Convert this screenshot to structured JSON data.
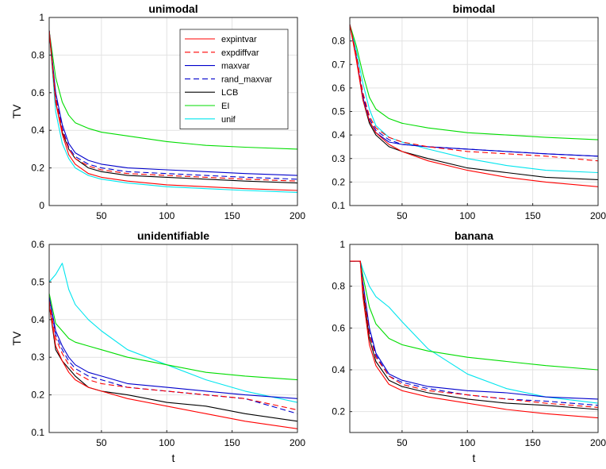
{
  "legend": {
    "placement": "top-right of first panel",
    "entries": [
      {
        "name": "expintvar",
        "color": "#ff0000",
        "dash": "solid"
      },
      {
        "name": "expdiffvar",
        "color": "#ff0000",
        "dash": "dashed"
      },
      {
        "name": "maxvar",
        "color": "#0000cc",
        "dash": "solid"
      },
      {
        "name": "rand_maxvar",
        "color": "#0000cc",
        "dash": "dashed"
      },
      {
        "name": "LCB",
        "color": "#000000",
        "dash": "solid"
      },
      {
        "name": "EI",
        "color": "#00dd00",
        "dash": "solid"
      },
      {
        "name": "unif",
        "color": "#00e5ee",
        "dash": "solid"
      }
    ]
  },
  "chart_data": [
    {
      "type": "line",
      "title": "unimodal",
      "xlabel": "",
      "ylabel": "TV",
      "xlim": [
        10,
        200
      ],
      "ylim": [
        0,
        1
      ],
      "xticks": [
        50,
        100,
        150,
        200
      ],
      "yticks": [
        0,
        0.2,
        0.4,
        0.6,
        0.8,
        1
      ],
      "ytick_labels": [
        "0",
        "0.2",
        "0.4",
        "0.6",
        "0.8",
        "1"
      ],
      "grid": true,
      "series": [
        {
          "name": "expintvar",
          "x": [
            10,
            15,
            20,
            25,
            30,
            40,
            50,
            70,
            100,
            130,
            160,
            200
          ],
          "y": [
            0.93,
            0.55,
            0.38,
            0.27,
            0.22,
            0.17,
            0.15,
            0.13,
            0.11,
            0.1,
            0.09,
            0.08
          ]
        },
        {
          "name": "expdiffvar",
          "x": [
            10,
            15,
            20,
            25,
            30,
            40,
            50,
            70,
            100,
            130,
            160,
            200
          ],
          "y": [
            0.93,
            0.57,
            0.4,
            0.3,
            0.25,
            0.21,
            0.19,
            0.17,
            0.16,
            0.15,
            0.14,
            0.13
          ]
        },
        {
          "name": "maxvar",
          "x": [
            10,
            15,
            20,
            25,
            30,
            40,
            50,
            70,
            100,
            130,
            160,
            200
          ],
          "y": [
            0.93,
            0.6,
            0.43,
            0.33,
            0.28,
            0.24,
            0.22,
            0.2,
            0.19,
            0.18,
            0.17,
            0.16
          ]
        },
        {
          "name": "rand_maxvar",
          "x": [
            10,
            15,
            20,
            25,
            30,
            40,
            50,
            70,
            100,
            130,
            160,
            200
          ],
          "y": [
            0.93,
            0.58,
            0.41,
            0.31,
            0.26,
            0.22,
            0.2,
            0.18,
            0.17,
            0.16,
            0.15,
            0.14
          ]
        },
        {
          "name": "LCB",
          "x": [
            10,
            15,
            20,
            25,
            30,
            40,
            50,
            70,
            100,
            130,
            160,
            200
          ],
          "y": [
            0.93,
            0.55,
            0.39,
            0.3,
            0.25,
            0.2,
            0.18,
            0.16,
            0.15,
            0.14,
            0.13,
            0.12
          ]
        },
        {
          "name": "EI",
          "x": [
            10,
            15,
            20,
            25,
            30,
            40,
            50,
            70,
            100,
            130,
            160,
            200
          ],
          "y": [
            0.93,
            0.68,
            0.55,
            0.48,
            0.44,
            0.41,
            0.39,
            0.37,
            0.34,
            0.32,
            0.31,
            0.3
          ]
        },
        {
          "name": "unif",
          "x": [
            10,
            15,
            20,
            25,
            30,
            40,
            50,
            70,
            100,
            130,
            160,
            200
          ],
          "y": [
            0.93,
            0.5,
            0.33,
            0.25,
            0.2,
            0.16,
            0.14,
            0.12,
            0.1,
            0.09,
            0.08,
            0.07
          ]
        }
      ]
    },
    {
      "type": "line",
      "title": "bimodal",
      "xlabel": "",
      "ylabel": "",
      "xlim": [
        10,
        200
      ],
      "ylim": [
        0.1,
        0.9
      ],
      "xticks": [
        50,
        100,
        150,
        200
      ],
      "yticks": [
        0.1,
        0.2,
        0.3,
        0.4,
        0.5,
        0.6,
        0.7,
        0.8
      ],
      "ytick_labels": [
        "0.1",
        "0.2",
        "0.3",
        "0.4",
        "0.5",
        "0.6",
        "0.7",
        "0.8"
      ],
      "grid": true,
      "series": [
        {
          "name": "expintvar",
          "x": [
            10,
            15,
            20,
            25,
            30,
            40,
            50,
            70,
            100,
            130,
            160,
            200
          ],
          "y": [
            0.87,
            0.72,
            0.55,
            0.46,
            0.41,
            0.36,
            0.33,
            0.29,
            0.25,
            0.22,
            0.2,
            0.18
          ]
        },
        {
          "name": "expdiffvar",
          "x": [
            10,
            15,
            20,
            25,
            30,
            40,
            50,
            70,
            100,
            130,
            160,
            200
          ],
          "y": [
            0.87,
            0.74,
            0.58,
            0.48,
            0.43,
            0.39,
            0.37,
            0.35,
            0.33,
            0.32,
            0.31,
            0.29
          ]
        },
        {
          "name": "maxvar",
          "x": [
            10,
            15,
            20,
            25,
            30,
            40,
            50,
            70,
            100,
            130,
            160,
            200
          ],
          "y": [
            0.87,
            0.73,
            0.56,
            0.46,
            0.41,
            0.37,
            0.36,
            0.35,
            0.34,
            0.33,
            0.32,
            0.31
          ]
        },
        {
          "name": "rand_maxvar",
          "x": [
            10,
            15,
            20,
            25,
            30,
            40,
            50,
            70,
            100,
            130,
            160,
            200
          ],
          "y": [
            0.87,
            0.74,
            0.57,
            0.47,
            0.42,
            0.38,
            0.36,
            0.35,
            0.34,
            0.33,
            0.32,
            0.31
          ]
        },
        {
          "name": "LCB",
          "x": [
            10,
            15,
            20,
            25,
            30,
            40,
            50,
            70,
            100,
            130,
            160,
            200
          ],
          "y": [
            0.87,
            0.73,
            0.55,
            0.45,
            0.4,
            0.35,
            0.33,
            0.3,
            0.26,
            0.24,
            0.22,
            0.21
          ]
        },
        {
          "name": "EI",
          "x": [
            10,
            15,
            20,
            25,
            30,
            40,
            50,
            70,
            100,
            130,
            160,
            200
          ],
          "y": [
            0.87,
            0.78,
            0.66,
            0.56,
            0.51,
            0.47,
            0.45,
            0.43,
            0.41,
            0.4,
            0.39,
            0.38
          ]
        },
        {
          "name": "unif",
          "x": [
            10,
            15,
            20,
            25,
            30,
            40,
            50,
            70,
            100,
            130,
            160,
            200
          ],
          "y": [
            0.87,
            0.76,
            0.62,
            0.51,
            0.44,
            0.39,
            0.37,
            0.34,
            0.3,
            0.27,
            0.25,
            0.24
          ]
        }
      ]
    },
    {
      "type": "line",
      "title": "unidentifiable",
      "xlabel": "t",
      "ylabel": "TV",
      "xlim": [
        10,
        200
      ],
      "ylim": [
        0.1,
        0.6
      ],
      "xticks": [
        50,
        100,
        150,
        200
      ],
      "yticks": [
        0.1,
        0.2,
        0.3,
        0.4,
        0.5,
        0.6
      ],
      "ytick_labels": [
        "0.1",
        "0.2",
        "0.3",
        "0.4",
        "0.5",
        "0.6"
      ],
      "grid": true,
      "series": [
        {
          "name": "expintvar",
          "x": [
            10,
            15,
            20,
            25,
            30,
            40,
            50,
            70,
            100,
            130,
            160,
            200
          ],
          "y": [
            0.44,
            0.33,
            0.29,
            0.26,
            0.24,
            0.22,
            0.21,
            0.19,
            0.17,
            0.15,
            0.13,
            0.11
          ]
        },
        {
          "name": "expdiffvar",
          "x": [
            10,
            15,
            20,
            25,
            30,
            40,
            50,
            70,
            100,
            130,
            160,
            200
          ],
          "y": [
            0.45,
            0.35,
            0.31,
            0.28,
            0.26,
            0.24,
            0.23,
            0.22,
            0.21,
            0.2,
            0.19,
            0.16
          ]
        },
        {
          "name": "maxvar",
          "x": [
            10,
            15,
            20,
            25,
            30,
            40,
            50,
            70,
            100,
            130,
            160,
            200
          ],
          "y": [
            0.46,
            0.37,
            0.33,
            0.3,
            0.28,
            0.26,
            0.25,
            0.23,
            0.22,
            0.21,
            0.2,
            0.19
          ]
        },
        {
          "name": "rand_maxvar",
          "x": [
            10,
            15,
            20,
            25,
            30,
            40,
            50,
            70,
            100,
            130,
            160,
            200
          ],
          "y": [
            0.46,
            0.36,
            0.32,
            0.29,
            0.27,
            0.25,
            0.24,
            0.22,
            0.21,
            0.2,
            0.19,
            0.15
          ]
        },
        {
          "name": "LCB",
          "x": [
            10,
            15,
            20,
            25,
            30,
            40,
            50,
            70,
            100,
            130,
            160,
            200
          ],
          "y": [
            0.44,
            0.32,
            0.29,
            0.27,
            0.25,
            0.22,
            0.21,
            0.2,
            0.18,
            0.17,
            0.15,
            0.13
          ]
        },
        {
          "name": "EI",
          "x": [
            10,
            15,
            20,
            25,
            30,
            40,
            50,
            70,
            100,
            130,
            160,
            200
          ],
          "y": [
            0.47,
            0.39,
            0.37,
            0.35,
            0.34,
            0.33,
            0.32,
            0.3,
            0.28,
            0.26,
            0.25,
            0.24
          ]
        },
        {
          "name": "unif",
          "x": [
            10,
            15,
            20,
            25,
            30,
            40,
            50,
            70,
            100,
            130,
            160,
            200
          ],
          "y": [
            0.5,
            0.52,
            0.55,
            0.48,
            0.44,
            0.4,
            0.37,
            0.32,
            0.28,
            0.24,
            0.21,
            0.18
          ]
        }
      ]
    },
    {
      "type": "line",
      "title": "banana",
      "xlabel": "t",
      "ylabel": "",
      "xlim": [
        10,
        200
      ],
      "ylim": [
        0.1,
        1
      ],
      "xticks": [
        50,
        100,
        150,
        200
      ],
      "yticks": [
        0.2,
        0.4,
        0.6,
        0.8,
        1
      ],
      "ytick_labels": [
        "0.2",
        "0.4",
        "0.6",
        "0.8",
        "1"
      ],
      "grid": true,
      "series": [
        {
          "name": "expintvar",
          "x": [
            10,
            18,
            20,
            25,
            30,
            40,
            50,
            70,
            100,
            130,
            160,
            200
          ],
          "y": [
            0.92,
            0.92,
            0.75,
            0.52,
            0.42,
            0.33,
            0.3,
            0.27,
            0.24,
            0.21,
            0.19,
            0.17
          ]
        },
        {
          "name": "expdiffvar",
          "x": [
            10,
            18,
            20,
            25,
            30,
            40,
            50,
            70,
            100,
            130,
            160,
            200
          ],
          "y": [
            0.92,
            0.92,
            0.8,
            0.57,
            0.46,
            0.37,
            0.33,
            0.3,
            0.28,
            0.26,
            0.24,
            0.22
          ]
        },
        {
          "name": "maxvar",
          "x": [
            10,
            18,
            20,
            25,
            30,
            40,
            50,
            70,
            100,
            130,
            160,
            200
          ],
          "y": [
            0.92,
            0.92,
            0.82,
            0.6,
            0.48,
            0.38,
            0.35,
            0.32,
            0.3,
            0.29,
            0.27,
            0.26
          ]
        },
        {
          "name": "rand_maxvar",
          "x": [
            10,
            18,
            20,
            25,
            30,
            40,
            50,
            70,
            100,
            130,
            160,
            200
          ],
          "y": [
            0.92,
            0.92,
            0.81,
            0.58,
            0.47,
            0.37,
            0.34,
            0.31,
            0.28,
            0.26,
            0.25,
            0.23
          ]
        },
        {
          "name": "LCB",
          "x": [
            10,
            18,
            20,
            25,
            30,
            40,
            50,
            70,
            100,
            130,
            160,
            200
          ],
          "y": [
            0.92,
            0.92,
            0.78,
            0.55,
            0.44,
            0.35,
            0.32,
            0.29,
            0.26,
            0.24,
            0.23,
            0.21
          ]
        },
        {
          "name": "EI",
          "x": [
            10,
            18,
            20,
            25,
            30,
            40,
            50,
            70,
            100,
            130,
            160,
            200
          ],
          "y": [
            0.92,
            0.92,
            0.85,
            0.7,
            0.62,
            0.55,
            0.52,
            0.49,
            0.46,
            0.44,
            0.42,
            0.4
          ]
        },
        {
          "name": "unif",
          "x": [
            10,
            18,
            20,
            25,
            30,
            40,
            50,
            70,
            100,
            130,
            160,
            200
          ],
          "y": [
            0.92,
            0.92,
            0.88,
            0.8,
            0.75,
            0.7,
            0.63,
            0.5,
            0.38,
            0.31,
            0.27,
            0.24
          ]
        }
      ]
    }
  ]
}
